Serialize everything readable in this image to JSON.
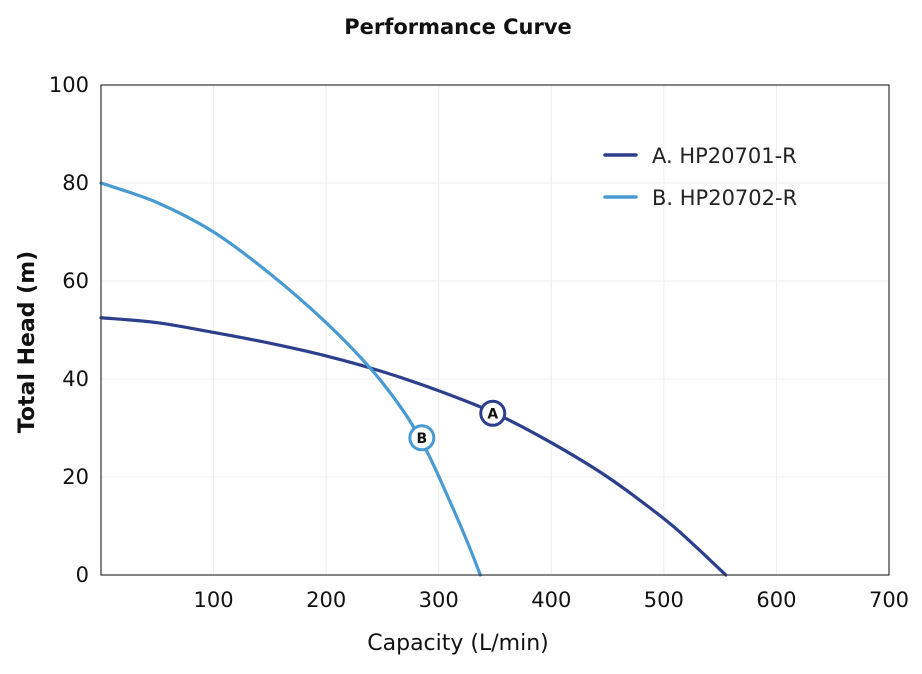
{
  "chart_data": {
    "type": "line",
    "title": "Performance Curve",
    "xlabel": "Capacity (L/min)",
    "ylabel": "Total Head (m)",
    "xlim": [
      0,
      700
    ],
    "ylim": [
      0,
      100
    ],
    "x_ticks": [
      100,
      200,
      300,
      400,
      500,
      600,
      700
    ],
    "y_ticks": [
      0,
      20,
      40,
      60,
      80,
      100
    ],
    "grid": true,
    "legend_position": "top-right",
    "series": [
      {
        "name": "A.  HP20701-R",
        "marker_label": "A",
        "color": "#2b3f8c",
        "x": [
          0,
          50,
          100,
          150,
          200,
          250,
          300,
          350,
          400,
          450,
          500,
          525,
          555
        ],
        "y": [
          52.5,
          51.5,
          49.5,
          47.3,
          44.7,
          41.5,
          37.6,
          33.0,
          27.0,
          20.0,
          11.5,
          6.5,
          0
        ],
        "marker": {
          "x": 348,
          "y": 33
        }
      },
      {
        "name": "B.  HP20702-R",
        "marker_label": "B",
        "color": "#4a9ad2",
        "x": [
          0,
          50,
          100,
          150,
          200,
          240,
          270,
          290,
          310,
          325,
          337
        ],
        "y": [
          80,
          76,
          70,
          61.5,
          51.5,
          42,
          33,
          25,
          15,
          7,
          0
        ],
        "marker": {
          "x": 285,
          "y": 28
        }
      }
    ]
  }
}
